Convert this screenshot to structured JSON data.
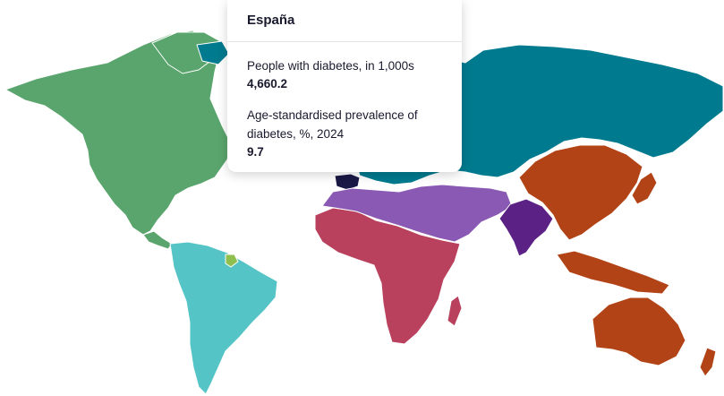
{
  "colors": {
    "north_america": "#5aa56d",
    "south_america": "#55c4c6",
    "europe_central_asia": "#007a8e",
    "europe_west": "#1a1845",
    "africa": "#b9415d",
    "mena": "#8a59b4",
    "south_asia": "#5b2185",
    "western_pacific": "#b24316",
    "highlight": "#8fbf4f"
  },
  "tooltip": {
    "country": "España",
    "metric1_label": "People with diabetes, in 1,000s",
    "metric1_value": "4,660.2",
    "metric2_label": "Age-standardised prevalence of diabetes, %, 2024",
    "metric2_value": "9.7"
  }
}
